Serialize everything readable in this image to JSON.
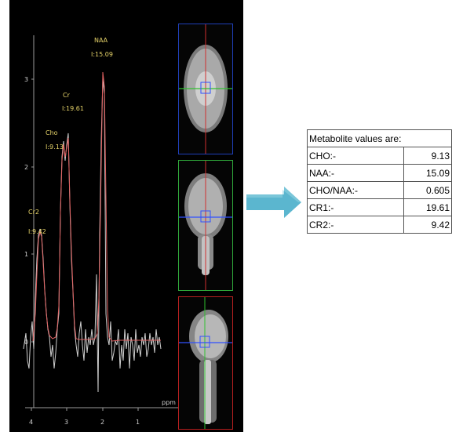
{
  "spectrum": {
    "y_ticks": [
      "3",
      "2",
      "1",
      "0"
    ],
    "x_ticks": [
      "4",
      "3",
      "2",
      "1"
    ],
    "x_unit": "ppm",
    "peaks": [
      {
        "name": "NAA",
        "value": "I:15.09"
      },
      {
        "name": "Cr",
        "value": "I:19.61"
      },
      {
        "name": "Cho",
        "value": "I:9.13"
      },
      {
        "name": "Cr2",
        "value": "I:9.42"
      }
    ]
  },
  "mri_views": [
    "axial",
    "coronal",
    "sagittal"
  ],
  "colors": {
    "spectrum_raw": "#cfcfcf",
    "spectrum_fit": "#e06060",
    "label": "#e8d56a",
    "arrow": "#5bb6cf",
    "frame_axial": "#1f3fb8",
    "frame_coronal": "#2fa83a",
    "frame_sagittal": "#b82020"
  },
  "table": {
    "header": "Metabolite values are:",
    "rows": [
      {
        "label": "CHO:-",
        "value": "9.13"
      },
      {
        "label": "NAA:-",
        "value": "15.09"
      },
      {
        "label": "CHO/NAA:-",
        "value": "0.605"
      },
      {
        "label": "CR1:-",
        "value": "19.61"
      },
      {
        "label": "CR2:-",
        "value": "9.42"
      }
    ]
  }
}
